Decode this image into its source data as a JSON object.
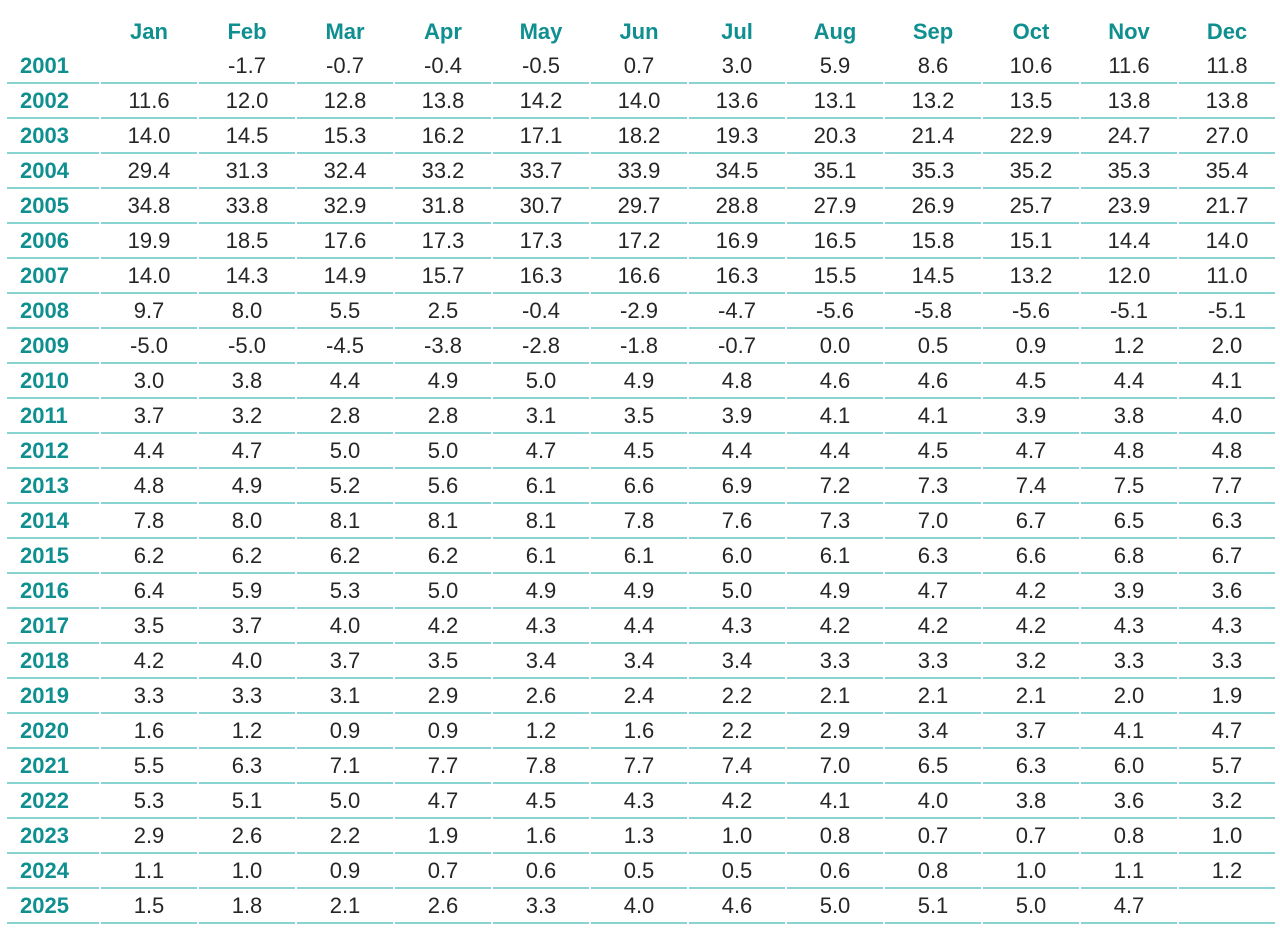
{
  "colors": {
    "accent_teal": "#0f8f90",
    "divider_teal": "#8ad3d3",
    "value_text": "#262626",
    "background": "#ffffff"
  },
  "chart_data": {
    "type": "table",
    "title": "",
    "columns": [
      "Jan",
      "Feb",
      "Mar",
      "Apr",
      "May",
      "Jun",
      "Jul",
      "Aug",
      "Sep",
      "Oct",
      "Nov",
      "Dec"
    ],
    "row_header": "year",
    "rows": [
      {
        "year": "2001",
        "values": [
          "",
          "-1.7",
          "-0.7",
          "-0.4",
          "-0.5",
          "0.7",
          "3.0",
          "5.9",
          "8.6",
          "10.6",
          "11.6",
          "11.8"
        ]
      },
      {
        "year": "2002",
        "values": [
          "11.6",
          "12.0",
          "12.8",
          "13.8",
          "14.2",
          "14.0",
          "13.6",
          "13.1",
          "13.2",
          "13.5",
          "13.8",
          "13.8"
        ]
      },
      {
        "year": "2003",
        "values": [
          "14.0",
          "14.5",
          "15.3",
          "16.2",
          "17.1",
          "18.2",
          "19.3",
          "20.3",
          "21.4",
          "22.9",
          "24.7",
          "27.0"
        ]
      },
      {
        "year": "2004",
        "values": [
          "29.4",
          "31.3",
          "32.4",
          "33.2",
          "33.7",
          "33.9",
          "34.5",
          "35.1",
          "35.3",
          "35.2",
          "35.3",
          "35.4"
        ]
      },
      {
        "year": "2005",
        "values": [
          "34.8",
          "33.8",
          "32.9",
          "31.8",
          "30.7",
          "29.7",
          "28.8",
          "27.9",
          "26.9",
          "25.7",
          "23.9",
          "21.7"
        ]
      },
      {
        "year": "2006",
        "values": [
          "19.9",
          "18.5",
          "17.6",
          "17.3",
          "17.3",
          "17.2",
          "16.9",
          "16.5",
          "15.8",
          "15.1",
          "14.4",
          "14.0"
        ]
      },
      {
        "year": "2007",
        "values": [
          "14.0",
          "14.3",
          "14.9",
          "15.7",
          "16.3",
          "16.6",
          "16.3",
          "15.5",
          "14.5",
          "13.2",
          "12.0",
          "11.0"
        ]
      },
      {
        "year": "2008",
        "values": [
          "9.7",
          "8.0",
          "5.5",
          "2.5",
          "-0.4",
          "-2.9",
          "-4.7",
          "-5.6",
          "-5.8",
          "-5.6",
          "-5.1",
          "-5.1"
        ]
      },
      {
        "year": "2009",
        "values": [
          "-5.0",
          "-5.0",
          "-4.5",
          "-3.8",
          "-2.8",
          "-1.8",
          "-0.7",
          "0.0",
          "0.5",
          "0.9",
          "1.2",
          "2.0"
        ]
      },
      {
        "year": "2010",
        "values": [
          "3.0",
          "3.8",
          "4.4",
          "4.9",
          "5.0",
          "4.9",
          "4.8",
          "4.6",
          "4.6",
          "4.5",
          "4.4",
          "4.1"
        ]
      },
      {
        "year": "2011",
        "values": [
          "3.7",
          "3.2",
          "2.8",
          "2.8",
          "3.1",
          "3.5",
          "3.9",
          "4.1",
          "4.1",
          "3.9",
          "3.8",
          "4.0"
        ]
      },
      {
        "year": "2012",
        "values": [
          "4.4",
          "4.7",
          "5.0",
          "5.0",
          "4.7",
          "4.5",
          "4.4",
          "4.4",
          "4.5",
          "4.7",
          "4.8",
          "4.8"
        ]
      },
      {
        "year": "2013",
        "values": [
          "4.8",
          "4.9",
          "5.2",
          "5.6",
          "6.1",
          "6.6",
          "6.9",
          "7.2",
          "7.3",
          "7.4",
          "7.5",
          "7.7"
        ]
      },
      {
        "year": "2014",
        "values": [
          "7.8",
          "8.0",
          "8.1",
          "8.1",
          "8.1",
          "7.8",
          "7.6",
          "7.3",
          "7.0",
          "6.7",
          "6.5",
          "6.3"
        ]
      },
      {
        "year": "2015",
        "values": [
          "6.2",
          "6.2",
          "6.2",
          "6.2",
          "6.1",
          "6.1",
          "6.0",
          "6.1",
          "6.3",
          "6.6",
          "6.8",
          "6.7"
        ]
      },
      {
        "year": "2016",
        "values": [
          "6.4",
          "5.9",
          "5.3",
          "5.0",
          "4.9",
          "4.9",
          "5.0",
          "4.9",
          "4.7",
          "4.2",
          "3.9",
          "3.6"
        ]
      },
      {
        "year": "2017",
        "values": [
          "3.5",
          "3.7",
          "4.0",
          "4.2",
          "4.3",
          "4.4",
          "4.3",
          "4.2",
          "4.2",
          "4.2",
          "4.3",
          "4.3"
        ]
      },
      {
        "year": "2018",
        "values": [
          "4.2",
          "4.0",
          "3.7",
          "3.5",
          "3.4",
          "3.4",
          "3.4",
          "3.3",
          "3.3",
          "3.2",
          "3.3",
          "3.3"
        ]
      },
      {
        "year": "2019",
        "values": [
          "3.3",
          "3.3",
          "3.1",
          "2.9",
          "2.6",
          "2.4",
          "2.2",
          "2.1",
          "2.1",
          "2.1",
          "2.0",
          "1.9"
        ]
      },
      {
        "year": "2020",
        "values": [
          "1.6",
          "1.2",
          "0.9",
          "0.9",
          "1.2",
          "1.6",
          "2.2",
          "2.9",
          "3.4",
          "3.7",
          "4.1",
          "4.7"
        ]
      },
      {
        "year": "2021",
        "values": [
          "5.5",
          "6.3",
          "7.1",
          "7.7",
          "7.8",
          "7.7",
          "7.4",
          "7.0",
          "6.5",
          "6.3",
          "6.0",
          "5.7"
        ]
      },
      {
        "year": "2022",
        "values": [
          "5.3",
          "5.1",
          "5.0",
          "4.7",
          "4.5",
          "4.3",
          "4.2",
          "4.1",
          "4.0",
          "3.8",
          "3.6",
          "3.2"
        ]
      },
      {
        "year": "2023",
        "values": [
          "2.9",
          "2.6",
          "2.2",
          "1.9",
          "1.6",
          "1.3",
          "1.0",
          "0.8",
          "0.7",
          "0.7",
          "0.8",
          "1.0"
        ]
      },
      {
        "year": "2024",
        "values": [
          "1.1",
          "1.0",
          "0.9",
          "0.7",
          "0.6",
          "0.5",
          "0.5",
          "0.6",
          "0.8",
          "1.0",
          "1.1",
          "1.2"
        ]
      },
      {
        "year": "2025",
        "values": [
          "1.5",
          "1.8",
          "2.1",
          "2.6",
          "3.3",
          "4.0",
          "4.6",
          "5.0",
          "5.1",
          "5.0",
          "4.7",
          ""
        ]
      }
    ]
  }
}
